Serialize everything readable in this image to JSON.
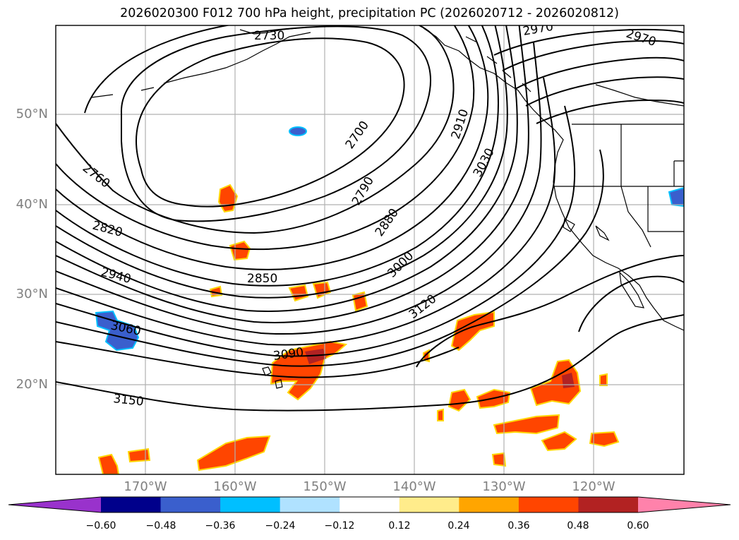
{
  "title": "2026020300 F012 700 hPa height, precipitation PC (2026020712 - 2026020812)",
  "axes": {
    "lat_labels": [
      "50°N",
      "40°N",
      "30°N",
      "20°N"
    ],
    "lon_labels": [
      "170°W",
      "160°W",
      "150°W",
      "140°W",
      "130°W",
      "120°W"
    ]
  },
  "contour_labels": [
    "2730",
    "2970",
    "2970",
    "2700",
    "2910",
    "3030",
    "2760",
    "2790",
    "2880",
    "2820",
    "3000",
    "2850",
    "2940",
    "3120",
    "3060",
    "3090",
    "3150"
  ],
  "colorbar": {
    "ticks": [
      "−0.60",
      "−0.48",
      "−0.36",
      "−0.24",
      "−0.12",
      "0.12",
      "0.24",
      "0.36",
      "0.48",
      "0.60"
    ],
    "colors": [
      "#9932cc",
      "#00008b",
      "#3a5fcd",
      "#00bfff",
      "#b0e2ff",
      "#ffffff",
      "#ffec8b",
      "#ffa500",
      "#ff4500",
      "#b22222",
      "#ff82ab"
    ]
  }
}
